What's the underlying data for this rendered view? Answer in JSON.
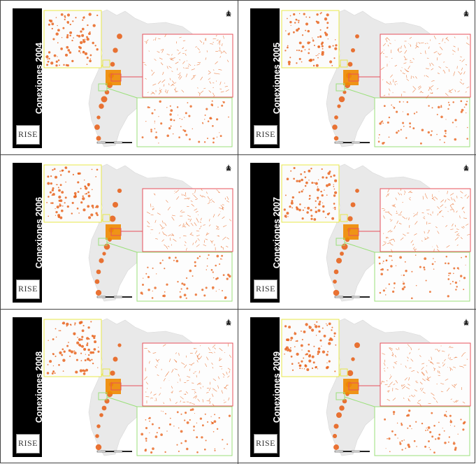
{
  "panels": [
    {
      "title": "Conexiones 2004",
      "logo": "RISE"
    },
    {
      "title": "Conexiones 2005",
      "logo": "RISE"
    },
    {
      "title": "Conexiones 2006",
      "logo": "RISE"
    },
    {
      "title": "Conexiones 2007",
      "logo": "RISE"
    },
    {
      "title": "Conexiones 2008",
      "logo": "RISE"
    },
    {
      "title": "Conexiones 2009",
      "logo": "RISE"
    }
  ],
  "colors": {
    "network": "#e8641e",
    "network_dense": "#f08a00",
    "territory": "#e9e9e9",
    "inset_north": "#e8e84a",
    "inset_center": "#e8505a",
    "inset_south": "#9be07a"
  },
  "icons": [
    "north-arrow-icon",
    "scale-bar-icon"
  ]
}
